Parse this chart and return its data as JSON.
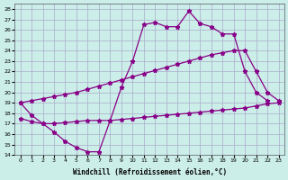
{
  "xlabel": "Windchill (Refroidissement éolien,°C)",
  "background_color": "#cceee8",
  "grid_color": "#aaaacc",
  "line_color": "#880088",
  "xlim": [
    -0.5,
    23.5
  ],
  "ylim": [
    14,
    28.5
  ],
  "xticks": [
    0,
    1,
    2,
    3,
    4,
    5,
    6,
    7,
    8,
    9,
    10,
    11,
    12,
    13,
    14,
    15,
    16,
    17,
    18,
    19,
    20,
    21,
    22,
    23
  ],
  "yticks": [
    14,
    15,
    16,
    17,
    18,
    19,
    20,
    21,
    22,
    23,
    24,
    25,
    26,
    27,
    28
  ],
  "line1_x": [
    0,
    1,
    2,
    3,
    4,
    5,
    6,
    7,
    8,
    9,
    10,
    11,
    12,
    13,
    14,
    15,
    16,
    17,
    18,
    19,
    20,
    21,
    22
  ],
  "line1_y": [
    19.0,
    17.8,
    17.0,
    16.2,
    15.3,
    14.7,
    14.3,
    14.3,
    17.3,
    20.5,
    23.0,
    26.5,
    26.7,
    26.3,
    26.3,
    27.8,
    26.6,
    26.3,
    25.6,
    25.6,
    22.0,
    20.0,
    19.2
  ],
  "line2_x": [
    0,
    1,
    2,
    3,
    4,
    5,
    6,
    7,
    8,
    9,
    10,
    11,
    12,
    13,
    14,
    15,
    16,
    17,
    18,
    19,
    20,
    21,
    22,
    23
  ],
  "line2_y": [
    19.0,
    19.2,
    19.4,
    19.6,
    19.8,
    20.0,
    20.3,
    20.6,
    20.9,
    21.2,
    21.5,
    21.8,
    22.1,
    22.4,
    22.7,
    23.0,
    23.3,
    23.6,
    23.8,
    24.0,
    24.0,
    22.0,
    20.0,
    19.2
  ],
  "line3_x": [
    0,
    1,
    2,
    3,
    4,
    5,
    6,
    7,
    8,
    9,
    10,
    11,
    12,
    13,
    14,
    15,
    16,
    17,
    18,
    19,
    20,
    21,
    22,
    23
  ],
  "line3_y": [
    17.5,
    17.2,
    17.0,
    17.0,
    17.1,
    17.2,
    17.3,
    17.3,
    17.3,
    17.4,
    17.5,
    17.6,
    17.7,
    17.8,
    17.9,
    18.0,
    18.1,
    18.2,
    18.3,
    18.4,
    18.5,
    18.7,
    18.9,
    19.0
  ],
  "marker": "*",
  "markersize": 3.5,
  "linewidth": 0.9
}
